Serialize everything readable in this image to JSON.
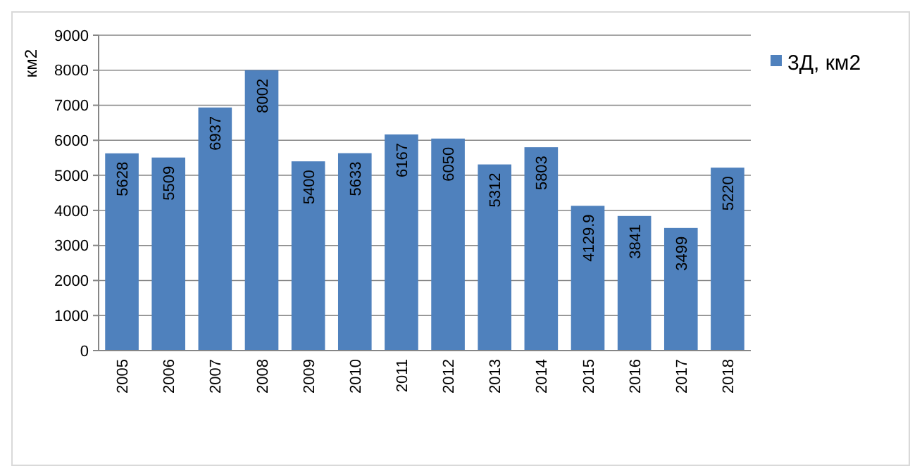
{
  "chart_data": {
    "type": "bar",
    "ylabel": "км2",
    "categories": [
      "2005",
      "2006",
      "2007",
      "2008",
      "2009",
      "2010",
      "2011",
      "2012",
      "2013",
      "2014",
      "2015",
      "2016",
      "2017",
      "2018"
    ],
    "series": [
      {
        "name": "3Д, км2",
        "color": "#4f81bd",
        "values": [
          5628,
          5509,
          6937,
          8002,
          5400,
          5633,
          6167,
          6050,
          5312,
          5803,
          4129.9,
          3841,
          3499,
          5220
        ]
      }
    ],
    "ylim": [
      0,
      9000
    ],
    "yticks": [
      0,
      1000,
      2000,
      3000,
      4000,
      5000,
      6000,
      7000,
      8000,
      9000
    ],
    "grid": "y",
    "legend": "top right",
    "data_labels": true
  }
}
